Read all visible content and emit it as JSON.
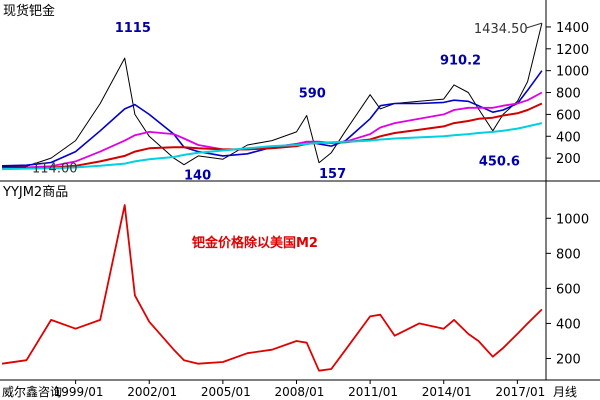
{
  "watermark": "威尔鑫咨询",
  "x_unit": "月线",
  "x_tick_labels": [
    "1999/01",
    "2002/01",
    "2005/01",
    "2008/01",
    "2011/01",
    "2014/01",
    "2017/01"
  ],
  "colors": {
    "price": "#000000",
    "ma_blue": "#0000cc",
    "ma_magenta": "#e000e0",
    "ma_red": "#d00000",
    "ma_cyan": "#00d0e0",
    "ratio": "#e00000",
    "annot_blue": "#0000aa",
    "axis": "#000000"
  },
  "chart_data": [
    {
      "type": "line",
      "title": "现货钯金",
      "x": [
        "1996-01",
        "1997-01",
        "1998-01",
        "1999-01",
        "2000-01",
        "2001-01",
        "2001-06",
        "2002-01",
        "2003-01",
        "2003-06",
        "2004-01",
        "2005-01",
        "2006-01",
        "2007-01",
        "2008-01",
        "2008-06",
        "2008-12",
        "2009-06",
        "2010-01",
        "2011-01",
        "2011-06",
        "2012-01",
        "2013-01",
        "2014-01",
        "2014-06",
        "2015-01",
        "2015-06",
        "2016-01",
        "2016-06",
        "2017-01",
        "2017-06",
        "2018-01"
      ],
      "series": [
        {
          "name": "price",
          "values": [
            120,
            125,
            200,
            360,
            700,
            1115,
            600,
            400,
            200,
            140,
            220,
            190,
            320,
            360,
            440,
            590,
            157,
            250,
            450,
            780,
            650,
            700,
            720,
            740,
            870,
            800,
            650,
            450,
            600,
            720,
            900,
            1434.5
          ]
        },
        {
          "name": "ma_blue",
          "values": [
            130,
            135,
            160,
            260,
            450,
            650,
            690,
            600,
            420,
            300,
            260,
            220,
            240,
            300,
            330,
            350,
            330,
            310,
            360,
            560,
            680,
            700,
            700,
            710,
            730,
            720,
            680,
            620,
            640,
            700,
            820,
            1000
          ]
        },
        {
          "name": "ma_magenta",
          "values": [
            110,
            115,
            125,
            170,
            260,
            360,
            410,
            440,
            420,
            380,
            320,
            280,
            280,
            300,
            330,
            350,
            350,
            340,
            350,
            420,
            480,
            520,
            560,
            600,
            640,
            660,
            660,
            660,
            680,
            700,
            730,
            800
          ]
        },
        {
          "name": "ma_red",
          "values": [
            105,
            108,
            112,
            130,
            170,
            220,
            260,
            290,
            300,
            300,
            290,
            280,
            280,
            290,
            310,
            330,
            340,
            340,
            345,
            370,
            400,
            430,
            460,
            490,
            520,
            540,
            560,
            570,
            590,
            610,
            640,
            700
          ]
        },
        {
          "name": "ma_cyan",
          "values": [
            100,
            104,
            108,
            115,
            130,
            150,
            170,
            190,
            210,
            230,
            250,
            270,
            290,
            310,
            320,
            330,
            340,
            345,
            350,
            360,
            370,
            380,
            390,
            400,
            410,
            420,
            430,
            440,
            450,
            470,
            490,
            520
          ]
        }
      ],
      "annotations": [
        {
          "text": "1115",
          "x": "2001-01",
          "y": 1115
        },
        {
          "text": "140",
          "x": "2003-06",
          "y": 140
        },
        {
          "text": "590",
          "x": "2008-06",
          "y": 590
        },
        {
          "text": "157",
          "x": "2008-12",
          "y": 157
        },
        {
          "text": "910.2",
          "x": "2014-06",
          "y": 910.2
        },
        {
          "text": "450.6",
          "x": "2016-01",
          "y": 450.6
        },
        {
          "text": "1434.50",
          "x": "2018-01",
          "y": 1434.5
        },
        {
          "text": "114.00",
          "x": "1996-01",
          "y": 114
        }
      ],
      "ylim": [
        0,
        1500
      ],
      "y_ticks": [
        200,
        400,
        600,
        800,
        1000,
        1200,
        1400
      ]
    },
    {
      "type": "line",
      "title": "YYJM2商品",
      "annotation": "钯金价格除以美国M2",
      "x": [
        "1996-01",
        "1997-01",
        "1998-01",
        "1999-01",
        "2000-01",
        "2001-01",
        "2001-06",
        "2002-01",
        "2003-01",
        "2003-06",
        "2004-01",
        "2005-01",
        "2006-01",
        "2007-01",
        "2008-01",
        "2008-06",
        "2008-12",
        "2009-06",
        "2010-01",
        "2011-01",
        "2011-06",
        "2012-01",
        "2013-01",
        "2014-01",
        "2014-06",
        "2015-01",
        "2015-06",
        "2016-01",
        "2016-06",
        "2017-01",
        "2017-06",
        "2018-01"
      ],
      "series": [
        {
          "name": "ratio",
          "values": [
            170,
            190,
            420,
            370,
            420,
            1075,
            560,
            410,
            250,
            190,
            170,
            180,
            230,
            250,
            300,
            290,
            130,
            140,
            250,
            440,
            450,
            330,
            400,
            370,
            420,
            340,
            300,
            210,
            260,
            340,
            400,
            480
          ]
        }
      ],
      "ylim": [
        100,
        1150
      ],
      "y_ticks": [
        200,
        400,
        600,
        800,
        1000
      ]
    }
  ]
}
